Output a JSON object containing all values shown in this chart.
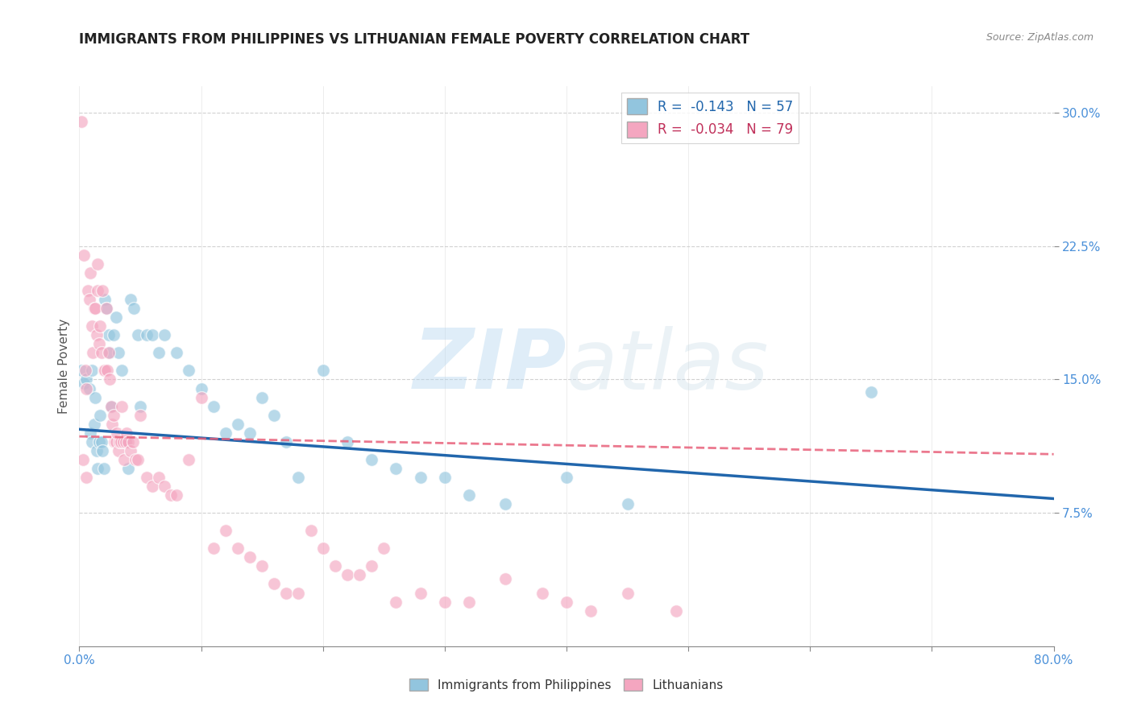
{
  "title": "IMMIGRANTS FROM PHILIPPINES VS LITHUANIAN FEMALE POVERTY CORRELATION CHART",
  "source": "Source: ZipAtlas.com",
  "ylabel": "Female Poverty",
  "yticks_labels": [
    "7.5%",
    "15.0%",
    "22.5%",
    "30.0%"
  ],
  "ytick_vals": [
    0.075,
    0.15,
    0.225,
    0.3
  ],
  "xlim": [
    0.0,
    0.8
  ],
  "ylim": [
    0.0,
    0.315
  ],
  "legend_blue_r_val": "-0.143",
  "legend_blue_n_val": "57",
  "legend_pink_r_val": "-0.034",
  "legend_pink_n_val": "79",
  "blue_color": "#92c5de",
  "pink_color": "#f4a6c0",
  "blue_line_color": "#2166ac",
  "pink_line_color": "#e8607a",
  "watermark_zip": "ZIP",
  "watermark_atlas": "atlas",
  "legend_label_blue": "Immigrants from Philippines",
  "legend_label_pink": "Lithuanians",
  "blue_scatter_x": [
    0.002,
    0.004,
    0.006,
    0.008,
    0.009,
    0.01,
    0.01,
    0.012,
    0.013,
    0.014,
    0.015,
    0.016,
    0.017,
    0.018,
    0.019,
    0.02,
    0.021,
    0.022,
    0.024,
    0.025,
    0.026,
    0.028,
    0.03,
    0.032,
    0.035,
    0.038,
    0.04,
    0.042,
    0.045,
    0.048,
    0.05,
    0.055,
    0.06,
    0.065,
    0.07,
    0.08,
    0.09,
    0.1,
    0.11,
    0.12,
    0.13,
    0.14,
    0.15,
    0.16,
    0.17,
    0.18,
    0.2,
    0.22,
    0.24,
    0.26,
    0.28,
    0.3,
    0.32,
    0.35,
    0.4,
    0.45,
    0.65
  ],
  "blue_scatter_y": [
    0.155,
    0.148,
    0.15,
    0.145,
    0.12,
    0.115,
    0.155,
    0.125,
    0.14,
    0.11,
    0.1,
    0.115,
    0.13,
    0.115,
    0.11,
    0.1,
    0.195,
    0.19,
    0.175,
    0.165,
    0.135,
    0.175,
    0.185,
    0.165,
    0.155,
    0.115,
    0.1,
    0.195,
    0.19,
    0.175,
    0.135,
    0.175,
    0.175,
    0.165,
    0.175,
    0.165,
    0.155,
    0.145,
    0.135,
    0.12,
    0.125,
    0.12,
    0.14,
    0.13,
    0.115,
    0.095,
    0.155,
    0.115,
    0.105,
    0.1,
    0.095,
    0.095,
    0.085,
    0.08,
    0.095,
    0.08,
    0.143
  ],
  "pink_scatter_x": [
    0.002,
    0.004,
    0.005,
    0.006,
    0.007,
    0.008,
    0.009,
    0.01,
    0.011,
    0.012,
    0.013,
    0.014,
    0.015,
    0.015,
    0.016,
    0.017,
    0.018,
    0.019,
    0.02,
    0.021,
    0.022,
    0.023,
    0.024,
    0.025,
    0.026,
    0.027,
    0.028,
    0.029,
    0.03,
    0.031,
    0.032,
    0.033,
    0.034,
    0.035,
    0.036,
    0.037,
    0.038,
    0.039,
    0.04,
    0.042,
    0.044,
    0.046,
    0.048,
    0.05,
    0.055,
    0.06,
    0.065,
    0.07,
    0.075,
    0.08,
    0.09,
    0.1,
    0.11,
    0.12,
    0.13,
    0.14,
    0.15,
    0.16,
    0.17,
    0.18,
    0.19,
    0.2,
    0.21,
    0.22,
    0.23,
    0.24,
    0.25,
    0.26,
    0.28,
    0.3,
    0.32,
    0.35,
    0.38,
    0.4,
    0.42,
    0.45,
    0.49,
    0.003,
    0.006
  ],
  "pink_scatter_y": [
    0.295,
    0.22,
    0.155,
    0.145,
    0.2,
    0.195,
    0.21,
    0.18,
    0.165,
    0.19,
    0.19,
    0.175,
    0.2,
    0.215,
    0.17,
    0.18,
    0.165,
    0.2,
    0.155,
    0.155,
    0.19,
    0.155,
    0.165,
    0.15,
    0.135,
    0.125,
    0.13,
    0.115,
    0.115,
    0.12,
    0.11,
    0.115,
    0.115,
    0.135,
    0.115,
    0.105,
    0.115,
    0.12,
    0.115,
    0.11,
    0.115,
    0.105,
    0.105,
    0.13,
    0.095,
    0.09,
    0.095,
    0.09,
    0.085,
    0.085,
    0.105,
    0.14,
    0.055,
    0.065,
    0.055,
    0.05,
    0.045,
    0.035,
    0.03,
    0.03,
    0.065,
    0.055,
    0.045,
    0.04,
    0.04,
    0.045,
    0.055,
    0.025,
    0.03,
    0.025,
    0.025,
    0.038,
    0.03,
    0.025,
    0.02,
    0.03,
    0.02,
    0.105,
    0.095
  ],
  "blue_trend_y_start": 0.122,
  "blue_trend_y_end": 0.083,
  "pink_trend_y_start": 0.118,
  "pink_trend_y_end": 0.108,
  "background_color": "#ffffff",
  "grid_color": "#cccccc",
  "title_fontsize": 12,
  "axis_label_fontsize": 11,
  "tick_fontsize": 11,
  "scatter_size": 130,
  "scatter_alpha": 0.65,
  "scatter_linewidth": 1.0
}
